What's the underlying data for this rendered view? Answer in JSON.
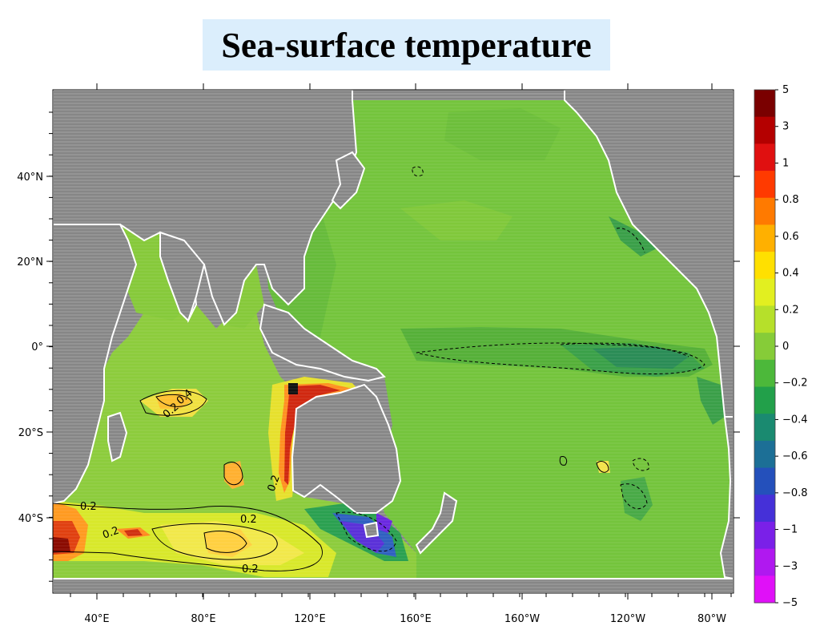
{
  "title": "Sea-surface temperature",
  "colors": {
    "land": "#8a8a8a",
    "coast": "#ffffff",
    "background_ocean": "#6fbf3a"
  },
  "map": {
    "lon_labels": [
      "40°E",
      "80°E",
      "120°E",
      "160°E",
      "160°W",
      "120°W",
      "80°W"
    ],
    "lat_labels": [
      "40°N",
      "20°N",
      "0°",
      "20°S",
      "40°S"
    ],
    "contour_labels": [
      "0.2",
      "0.4",
      "0.2",
      "0.2",
      "0.2",
      "0.2",
      "0.2"
    ]
  },
  "colorbar": {
    "labels": [
      "5",
      "3",
      "1",
      "0.8",
      "0.6",
      "0.4",
      "0.2",
      "0",
      "−0.2",
      "−0.4",
      "−0.6",
      "−0.8",
      "−1",
      "−3",
      "−5"
    ],
    "colors": [
      "#7a0000",
      "#b40000",
      "#e01010",
      "#ff3a00",
      "#ff7a00",
      "#ffb000",
      "#ffe000",
      "#e2ef20",
      "#b6e02a",
      "#86cc38",
      "#4cb83a",
      "#22a04a",
      "#1a8a70",
      "#1c6f96",
      "#2450bb",
      "#4530d8",
      "#7a20e8",
      "#b018f0",
      "#e010f8"
    ]
  }
}
